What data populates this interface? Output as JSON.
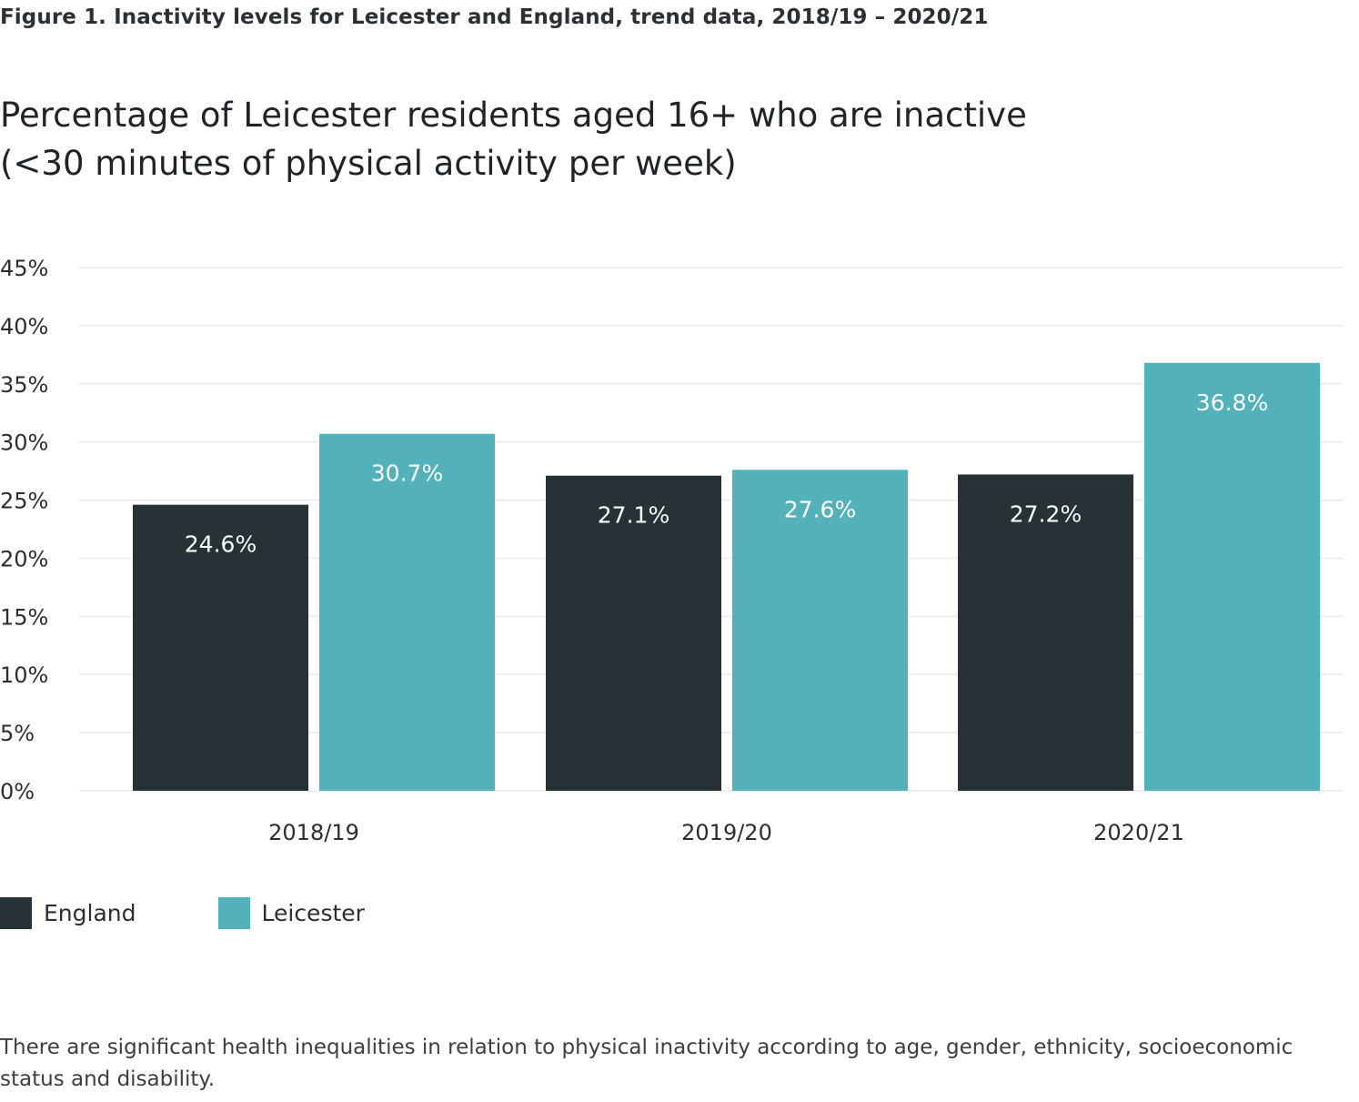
{
  "figure_caption": "Figure 1. Inactivity levels for Leicester and England, trend data, 2018/19 – 2020/21",
  "chart_title_line1": "Percentage of Leicester residents aged 16+ who are inactive",
  "chart_title_line2": "(<30 minutes of physical activity per week)",
  "footnote": "There are significant health inequalities in relation to physical inactivity according to age, gender, ethnicity, socioeconomic status and disability.",
  "colors": {
    "england": "#263236",
    "leicester": "#52b1b9",
    "grid": "#e4e6e8",
    "bar_label": "#ffffff",
    "tick_label": "#2a2f33"
  },
  "chart_data": {
    "type": "bar",
    "categories": [
      "2018/19",
      "2019/20",
      "2020/21"
    ],
    "series": [
      {
        "name": "England",
        "values": [
          24.6,
          27.1,
          27.2
        ],
        "labels": [
          "24.6%",
          "27.1%",
          "27.2%"
        ]
      },
      {
        "name": "Leicester",
        "values": [
          30.7,
          27.6,
          36.8
        ],
        "labels": [
          "30.7%",
          "27.6%",
          "36.8%"
        ]
      }
    ],
    "ylim": [
      0,
      45
    ],
    "yticks": [
      0,
      5,
      10,
      15,
      20,
      25,
      30,
      35,
      40,
      45
    ],
    "ytick_labels": [
      "0%",
      "5%",
      "10%",
      "15%",
      "20%",
      "25%",
      "30%",
      "35%",
      "40%",
      "45%"
    ],
    "grid": true,
    "legend_position": "bottom-left"
  }
}
